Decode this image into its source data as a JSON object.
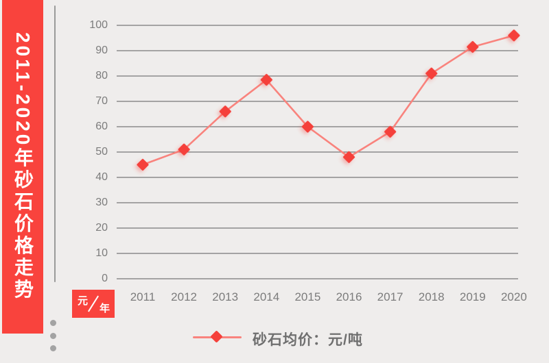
{
  "banner": {
    "title": "2011-2020年砂石价格走势"
  },
  "unit_badge": {
    "y_unit": "元",
    "x_unit": "年"
  },
  "legend": {
    "label": "砂石均价：元/吨"
  },
  "colors": {
    "background": "#efedec",
    "banner_red": "#f9433d",
    "line_red": "#f9837d",
    "marker_red": "#f5413b",
    "grid_gray": "#777777",
    "tick_gray": "#7c7c7c"
  },
  "chart_data": {
    "type": "line",
    "title": "2011-2020年砂石价格走势",
    "categories": [
      "2011",
      "2012",
      "2013",
      "2014",
      "2015",
      "2016",
      "2017",
      "2018",
      "2019",
      "2020"
    ],
    "series": [
      {
        "name": "砂石均价：元/吨",
        "values": [
          45,
          51,
          66,
          78.5,
          60,
          48,
          58,
          81,
          91.5,
          96
        ]
      }
    ],
    "xlabel": "年",
    "ylabel": "元",
    "ylim": [
      0,
      100
    ],
    "ytick_step": 10,
    "grid": true,
    "legend_position": "bottom",
    "marker": "diamond"
  }
}
